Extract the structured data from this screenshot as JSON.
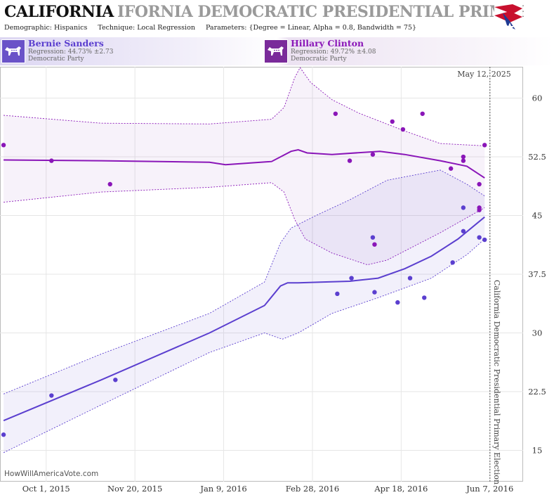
{
  "header": {
    "title_bold": "CALIFORNIA",
    "title_ghost": "IFORNIA DEMOCRATIC PRESIDENTIAL PRIMARY",
    "demographic": "Demographic: Hispanics",
    "technique": "Technique: Local Regression",
    "parameters": "Parameters: {Degree = Linear, Alpha = 0.8, Bandwidth = 75}"
  },
  "candidates": [
    {
      "name": "Bernie Sanders",
      "regression": "Regression: 44.73% ±2.73",
      "party": "Democratic Party",
      "color": "#5b3fcf",
      "badge_color": "#6a52c8"
    },
    {
      "name": "Hillary Clinton",
      "regression": "Regression: 49.72% ±4.08",
      "party": "Democratic Party",
      "color": "#8a16b8",
      "badge_color": "#7a2a9a"
    }
  ],
  "footer": {
    "credit": "HowWillAmericaVote.com"
  },
  "chart_data": {
    "type": "scatter",
    "date_label": "May 12, 2025",
    "event_label": "California Democratic Presidential Primary Election",
    "event_date": "2016-06-07",
    "x_ticks": [
      {
        "date": "2015-10-01",
        "label": "Oct 1, 2015"
      },
      {
        "date": "2015-11-20",
        "label": "Nov 20, 2015"
      },
      {
        "date": "2016-01-09",
        "label": "Jan 9, 2016"
      },
      {
        "date": "2016-02-28",
        "label": "Feb 28, 2016"
      },
      {
        "date": "2016-04-18",
        "label": "Apr 18, 2016"
      },
      {
        "date": "2016-06-07",
        "label": "Jun 7, 2016"
      }
    ],
    "xlim": [
      "2015-09-05",
      "2016-06-15"
    ],
    "ylim": [
      11,
      64
    ],
    "y_ticks": [
      15,
      22.5,
      30,
      37.5,
      45,
      52.5,
      60
    ],
    "grid": true,
    "series": [
      {
        "name": "Hillary Clinton",
        "color": "#8a16b8",
        "points": [
          [
            "2015-09-07",
            54
          ],
          [
            "2015-10-04",
            52
          ],
          [
            "2015-11-06",
            49
          ],
          [
            "2016-03-12",
            58
          ],
          [
            "2016-03-20",
            52
          ],
          [
            "2016-04-02",
            52.8
          ],
          [
            "2016-04-13",
            57
          ],
          [
            "2016-04-19",
            56
          ],
          [
            "2016-04-30",
            58
          ],
          [
            "2016-05-16",
            51
          ],
          [
            "2016-05-23",
            52.5
          ],
          [
            "2016-05-23",
            52
          ],
          [
            "2016-06-01",
            49
          ],
          [
            "2016-06-01",
            46
          ],
          [
            "2016-06-01",
            45.7
          ],
          [
            "2016-06-04",
            54
          ],
          [
            "2016-04-03",
            41.3
          ]
        ],
        "fit": [
          [
            "2015-09-07",
            52.1
          ],
          [
            "2015-11-01",
            52.0
          ],
          [
            "2016-01-01",
            51.8
          ],
          [
            "2016-01-10",
            51.5
          ],
          [
            "2016-02-05",
            51.9
          ],
          [
            "2016-02-16",
            53.2
          ],
          [
            "2016-02-20",
            53.4
          ],
          [
            "2016-02-25",
            53.0
          ],
          [
            "2016-03-10",
            52.8
          ],
          [
            "2016-04-06",
            53.2
          ],
          [
            "2016-04-20",
            52.8
          ],
          [
            "2016-05-10",
            52.0
          ],
          [
            "2016-05-25",
            51.3
          ],
          [
            "2016-06-04",
            49.8
          ]
        ],
        "upper": [
          [
            "2015-09-07",
            57.8
          ],
          [
            "2015-11-01",
            56.8
          ],
          [
            "2016-01-01",
            56.7
          ],
          [
            "2016-02-05",
            57.3
          ],
          [
            "2016-02-12",
            58.8
          ],
          [
            "2016-02-18",
            62.6
          ],
          [
            "2016-02-21",
            63.9
          ],
          [
            "2016-02-27",
            62.0
          ],
          [
            "2016-03-10",
            59.8
          ],
          [
            "2016-03-25",
            58.1
          ],
          [
            "2016-04-20",
            55.8
          ],
          [
            "2016-05-10",
            54.2
          ],
          [
            "2016-06-04",
            53.9
          ]
        ],
        "lower": [
          [
            "2015-09-07",
            46.7
          ],
          [
            "2015-11-01",
            48.0
          ],
          [
            "2016-01-01",
            48.6
          ],
          [
            "2016-02-05",
            49.2
          ],
          [
            "2016-02-12",
            48.0
          ],
          [
            "2016-02-18",
            44.5
          ],
          [
            "2016-02-24",
            42.0
          ],
          [
            "2016-03-10",
            40.2
          ],
          [
            "2016-03-30",
            38.7
          ],
          [
            "2016-04-10",
            39.3
          ],
          [
            "2016-05-10",
            42.8
          ],
          [
            "2016-06-04",
            46.0
          ]
        ]
      },
      {
        "name": "Bernie Sanders",
        "color": "#5b3fcf",
        "points": [
          [
            "2015-09-07",
            17
          ],
          [
            "2015-10-04",
            22
          ],
          [
            "2015-11-09",
            24
          ],
          [
            "2016-03-13",
            35
          ],
          [
            "2016-03-21",
            37
          ],
          [
            "2016-04-02",
            42.2
          ],
          [
            "2016-04-03",
            35.2
          ],
          [
            "2016-04-16",
            33.9
          ],
          [
            "2016-04-23",
            37
          ],
          [
            "2016-05-01",
            34.5
          ],
          [
            "2016-05-17",
            39
          ],
          [
            "2016-05-23",
            43
          ],
          [
            "2016-05-23",
            46
          ],
          [
            "2016-06-01",
            42.2
          ],
          [
            "2016-06-04",
            41.9
          ]
        ],
        "fit": [
          [
            "2015-09-07",
            18.8
          ],
          [
            "2015-11-01",
            24.0
          ],
          [
            "2016-01-01",
            30.0
          ],
          [
            "2016-02-01",
            33.5
          ],
          [
            "2016-02-10",
            36.0
          ],
          [
            "2016-02-14",
            36.4
          ],
          [
            "2016-02-20",
            36.4
          ],
          [
            "2016-03-05",
            36.5
          ],
          [
            "2016-03-20",
            36.6
          ],
          [
            "2016-04-05",
            37.0
          ],
          [
            "2016-04-20",
            38.2
          ],
          [
            "2016-05-05",
            39.8
          ],
          [
            "2016-05-20",
            42.0
          ],
          [
            "2016-06-04",
            44.8
          ]
        ],
        "upper": [
          [
            "2015-09-07",
            22.2
          ],
          [
            "2015-11-01",
            27.3
          ],
          [
            "2016-01-01",
            32.5
          ],
          [
            "2016-02-01",
            36.5
          ],
          [
            "2016-02-10",
            41.5
          ],
          [
            "2016-02-16",
            43.4
          ],
          [
            "2016-03-01",
            45.0
          ],
          [
            "2016-03-20",
            47.0
          ],
          [
            "2016-04-10",
            49.5
          ],
          [
            "2016-05-10",
            50.8
          ],
          [
            "2016-05-25",
            49.0
          ],
          [
            "2016-06-04",
            47.5
          ]
        ],
        "lower": [
          [
            "2015-09-07",
            14.7
          ],
          [
            "2015-11-01",
            20.8
          ],
          [
            "2016-01-01",
            27.5
          ],
          [
            "2016-02-01",
            30.0
          ],
          [
            "2016-02-11",
            29.2
          ],
          [
            "2016-02-20",
            30.0
          ],
          [
            "2016-03-10",
            32.5
          ],
          [
            "2016-04-05",
            34.5
          ],
          [
            "2016-05-05",
            37.0
          ],
          [
            "2016-05-25",
            40.0
          ],
          [
            "2016-06-04",
            42.0
          ]
        ]
      }
    ]
  }
}
